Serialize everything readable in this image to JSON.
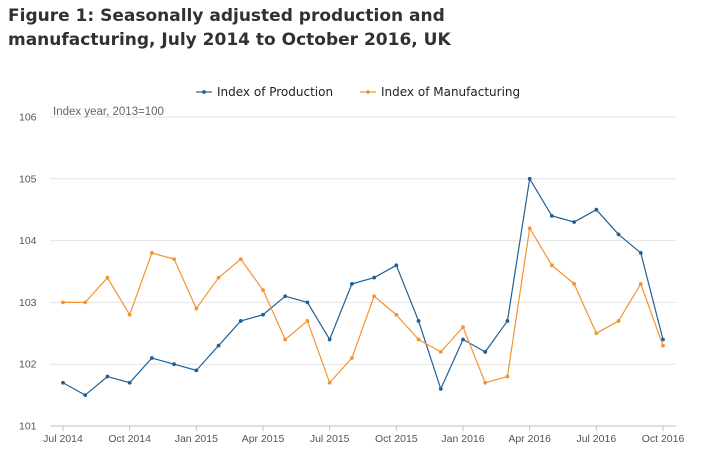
{
  "figure": {
    "title_line1": "Figure 1: Seasonally adjusted production and",
    "title_line2": "manufacturing, July 2014 to October 2016, UK"
  },
  "chart_data": {
    "type": "line",
    "title": "Figure 1: Seasonally adjusted production and manufacturing, July 2014 to October 2016, UK",
    "ylabel": "Index year, 2013=100",
    "xlabel": "",
    "ylim": [
      101,
      106
    ],
    "yticks": [
      101,
      102,
      103,
      104,
      105,
      106
    ],
    "grid": true,
    "legend_position": "top-center",
    "x": [
      "Jul 2014",
      "Aug 2014",
      "Sep 2014",
      "Oct 2014",
      "Nov 2014",
      "Dec 2014",
      "Jan 2015",
      "Feb 2015",
      "Mar 2015",
      "Apr 2015",
      "May 2015",
      "Jun 2015",
      "Jul 2015",
      "Aug 2015",
      "Sep 2015",
      "Oct 2015",
      "Nov 2015",
      "Dec 2015",
      "Jan 2016",
      "Feb 2016",
      "Mar 2016",
      "Apr 2016",
      "May 2016",
      "Jun 2016",
      "Jul 2016",
      "Aug 2016",
      "Sep 2016",
      "Oct 2016"
    ],
    "xtick_labels": [
      "Jul 2014",
      "Oct 2014",
      "Jan 2015",
      "Apr 2015",
      "Jul 2015",
      "Oct 2015",
      "Jan 2016",
      "Apr 2016",
      "Jul 2016",
      "Oct 2016"
    ],
    "series": [
      {
        "name": "Index of Production",
        "color": "#206095",
        "values": [
          101.7,
          101.5,
          101.8,
          101.7,
          102.1,
          102.0,
          101.9,
          102.3,
          102.7,
          102.8,
          103.1,
          103.0,
          102.4,
          103.3,
          103.4,
          103.6,
          102.7,
          101.6,
          102.4,
          102.2,
          102.7,
          105.0,
          104.4,
          104.3,
          104.5,
          104.1,
          103.8,
          102.4
        ]
      },
      {
        "name": "Index of Manufacturing",
        "color": "#F39431",
        "values": [
          103.0,
          103.0,
          103.4,
          102.8,
          103.8,
          103.7,
          102.9,
          103.4,
          103.7,
          103.2,
          102.4,
          102.7,
          101.7,
          102.1,
          103.1,
          102.8,
          102.4,
          102.2,
          102.6,
          101.7,
          101.8,
          104.2,
          103.6,
          103.3,
          102.5,
          102.7,
          103.3,
          102.3
        ]
      }
    ]
  }
}
